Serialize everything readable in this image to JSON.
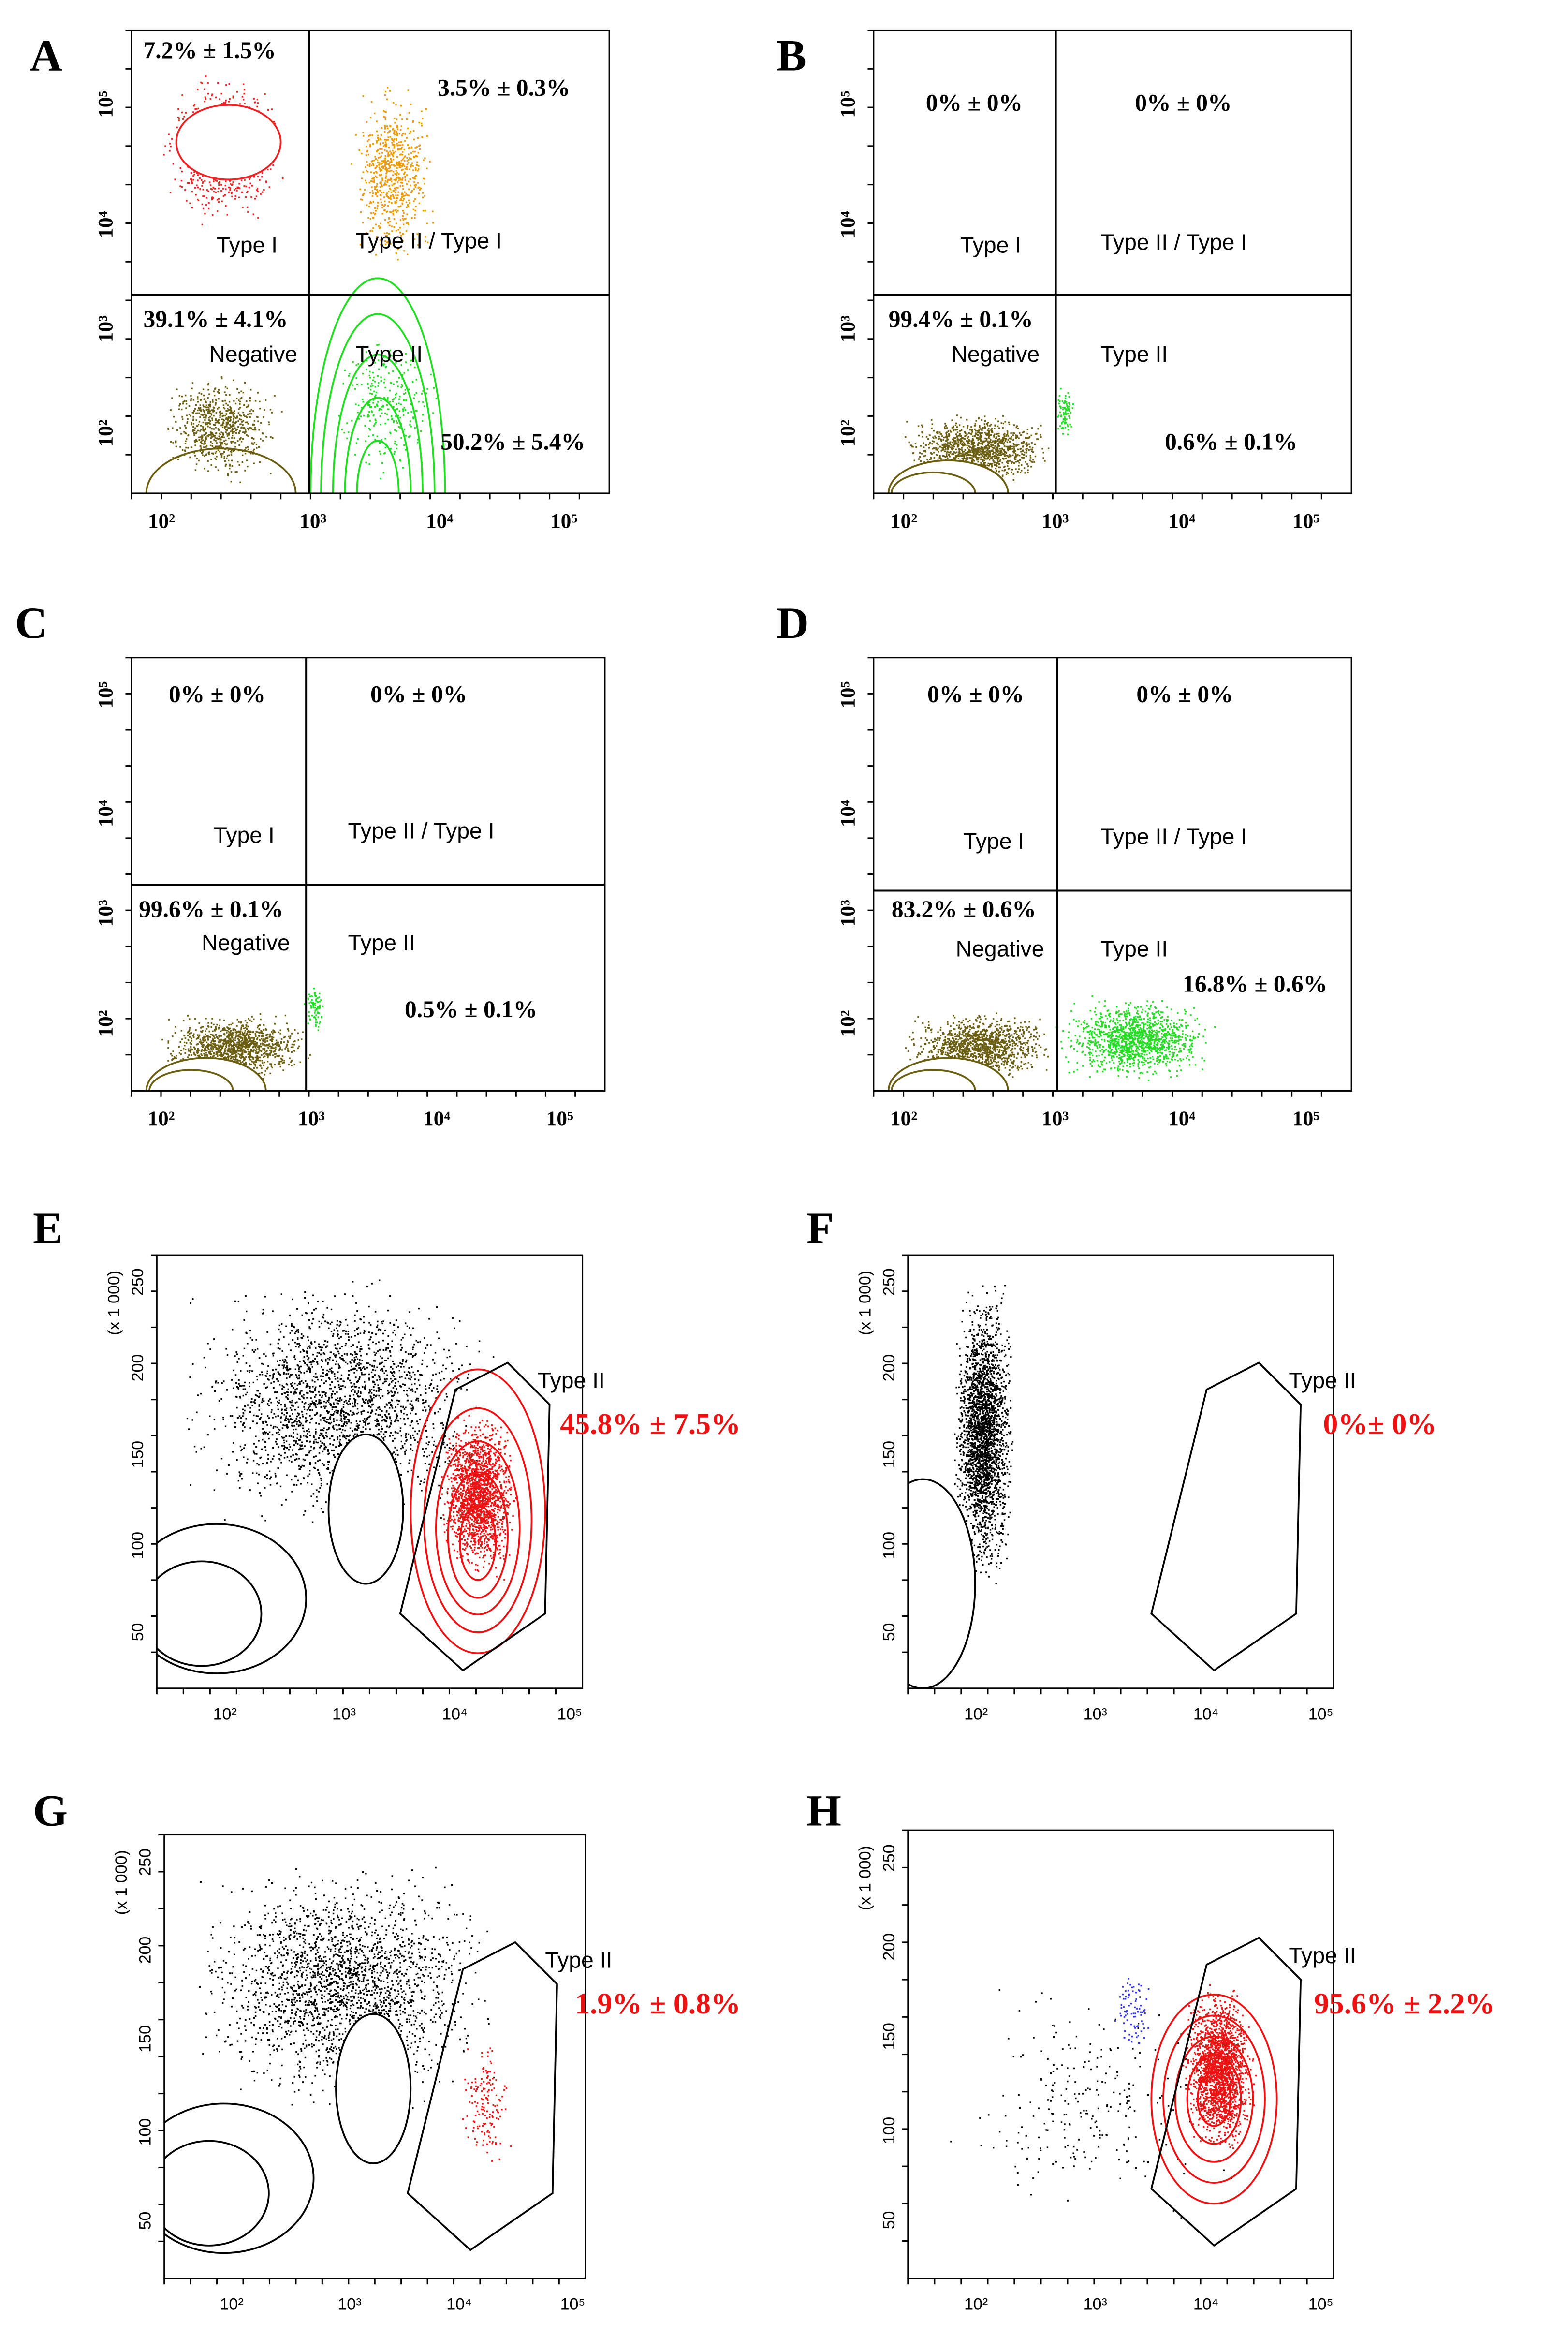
{
  "panels": [
    {
      "letter": "A",
      "percents": [
        "7.2% ± 1.5%",
        "3.5% ± 0.3%",
        "39.1% ± 4.1%",
        "50.2% ± 5.4%"
      ],
      "quadrants": [
        "Type I",
        "Type II / Type I",
        "Negative",
        "Type II"
      ],
      "xticks": [
        "10²",
        "10³",
        "10⁴",
        "10⁵"
      ],
      "yticks": [
        "10⁵",
        "10⁴",
        "10³",
        "10²"
      ]
    },
    {
      "letter": "B",
      "percents": [
        "0% ± 0%",
        "0% ± 0%",
        "99.4% ± 0.1%",
        "0.6% ± 0.1%"
      ],
      "quadrants": [
        "Type I",
        "Type II / Type I",
        "Negative",
        "Type II"
      ],
      "xticks": [
        "10²",
        "10³",
        "10⁴",
        "10⁵"
      ],
      "yticks": [
        "10⁵",
        "10⁴",
        "10³",
        "10²"
      ]
    },
    {
      "letter": "C",
      "percents": [
        "0% ± 0%",
        "0% ± 0%",
        "99.6% ± 0.1%",
        "0.5% ± 0.1%"
      ],
      "quadrants": [
        "Type I",
        "Type II / Type I",
        "Negative",
        "Type II"
      ],
      "xticks": [
        "10²",
        "10³",
        "10⁴",
        "10⁵"
      ],
      "yticks": [
        "10⁵",
        "10⁴",
        "10³",
        "10²"
      ]
    },
    {
      "letter": "D",
      "percents": [
        "0% ± 0%",
        "0% ± 0%",
        "83.2% ± 0.6%",
        "16.8% ± 0.6%"
      ],
      "quadrants": [
        "Type I",
        "Type II / Type I",
        "Negative",
        "Type II"
      ],
      "xticks": [
        "10²",
        "10³",
        "10⁴",
        "10⁵"
      ],
      "yticks": [
        "10⁵",
        "10⁴",
        "10³",
        "10²"
      ]
    },
    {
      "letter": "E",
      "gate": "Type II",
      "percent": "45.8% ± 7.5%",
      "y_label": "(x 1 000)",
      "yticks": [
        250,
        200,
        150,
        100,
        50
      ],
      "xticks": [
        "10²",
        "10³",
        "10⁴",
        "10⁵"
      ]
    },
    {
      "letter": "F",
      "gate": "Type II",
      "percent": "0%± 0%",
      "y_label": "(x 1 000)",
      "yticks": [
        250,
        200,
        150,
        100,
        50
      ],
      "xticks": [
        "10²",
        "10³",
        "10⁴",
        "10⁵"
      ]
    },
    {
      "letter": "G",
      "gate": "Type II",
      "percent": "1.9% ± 0.8%",
      "y_label": "(x 1 000)",
      "yticks": [
        250,
        200,
        150,
        100,
        50
      ],
      "xticks": [
        "10²",
        "10³",
        "10⁴",
        "10⁵"
      ]
    },
    {
      "letter": "H",
      "gate": "Type II",
      "percent": "95.6% ± 2.2%",
      "y_label": "(x 1 000)",
      "yticks": [
        250,
        200,
        150,
        100,
        50
      ],
      "xticks": [
        "10²",
        "10³",
        "10⁴",
        "10⁵"
      ]
    }
  ]
}
